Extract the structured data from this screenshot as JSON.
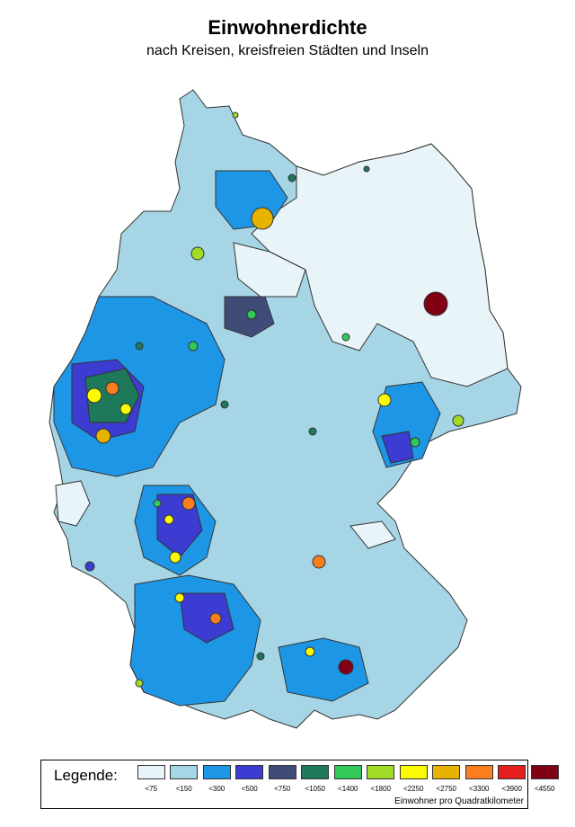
{
  "title": "Einwohnerdichte",
  "subtitle": "nach Kreisen, kreisfreien Städten und Inseln",
  "legend": {
    "title": "Legende:",
    "unit": "Einwohner pro Quadratkilometer",
    "classes": [
      {
        "label": "<75",
        "color": "#e8f4f8"
      },
      {
        "label": "<150",
        "color": "#a6d6e6"
      },
      {
        "label": "<300",
        "color": "#1e96e6"
      },
      {
        "label": "<500",
        "color": "#3c3cd2"
      },
      {
        "label": "<750",
        "color": "#414b78"
      },
      {
        "label": "<1050",
        "color": "#1e785a"
      },
      {
        "label": "<1400",
        "color": "#32c85a"
      },
      {
        "label": "<1800",
        "color": "#a0dc28"
      },
      {
        "label": "<2250",
        "color": "#fafa00"
      },
      {
        "label": "<2750",
        "color": "#e6b400"
      },
      {
        "label": "<3300",
        "color": "#fa7d1e"
      },
      {
        "label": "<3900",
        "color": "#e61e1e"
      },
      {
        "label": "<4550",
        "color": "#820014"
      }
    ]
  }
}
